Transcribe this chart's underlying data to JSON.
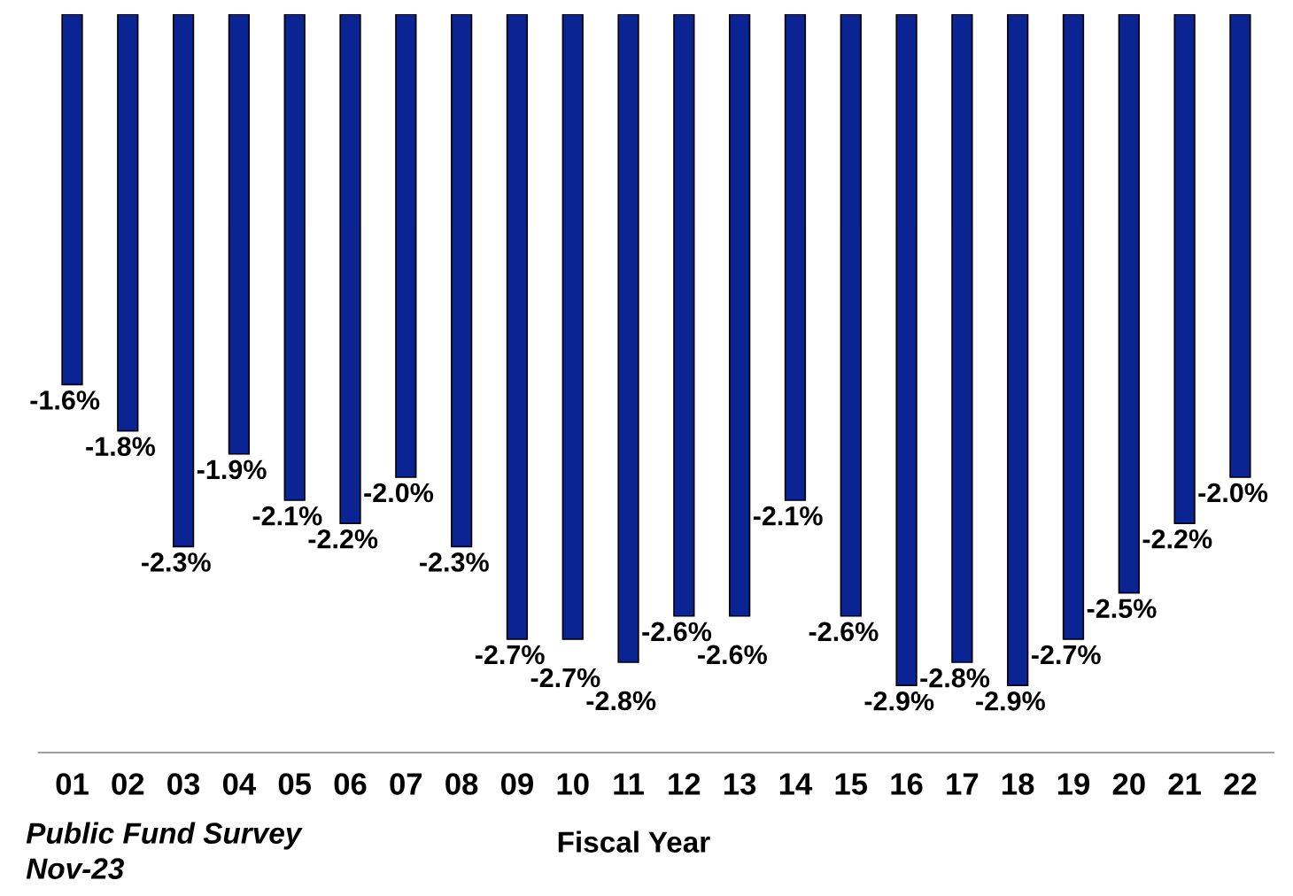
{
  "chart_data": {
    "type": "bar",
    "xlabel": "Fiscal Year",
    "categories": [
      "01",
      "02",
      "03",
      "04",
      "05",
      "06",
      "07",
      "08",
      "09",
      "10",
      "11",
      "12",
      "13",
      "14",
      "15",
      "16",
      "17",
      "18",
      "19",
      "20",
      "21",
      "22"
    ],
    "values": [
      -1.6,
      -1.8,
      -2.3,
      -1.9,
      -2.1,
      -2.2,
      -2.0,
      -2.3,
      -2.7,
      -2.7,
      -2.8,
      -2.6,
      -2.6,
      -2.1,
      -2.6,
      -2.9,
      -2.8,
      -2.9,
      -2.7,
      -2.5,
      -2.2,
      -2.0
    ],
    "value_labels": [
      "-1.6%",
      "-1.8%",
      "-2.3%",
      "-1.9%",
      "-2.1%",
      "-2.2%",
      "-2.0%",
      "-2.3%",
      "-2.7%",
      "-2.7%",
      "-2.8%",
      "-2.6%",
      "-2.6%",
      "-2.1%",
      "-2.6%",
      "-2.9%",
      "-2.8%",
      "-2.9%",
      "-2.7%",
      "-2.5%",
      "-2.2%",
      "-2.0%"
    ],
    "color": "#0a2494",
    "annotations": [
      "Public Fund Survey",
      "Nov-23"
    ],
    "grid": false,
    "legend": false
  }
}
